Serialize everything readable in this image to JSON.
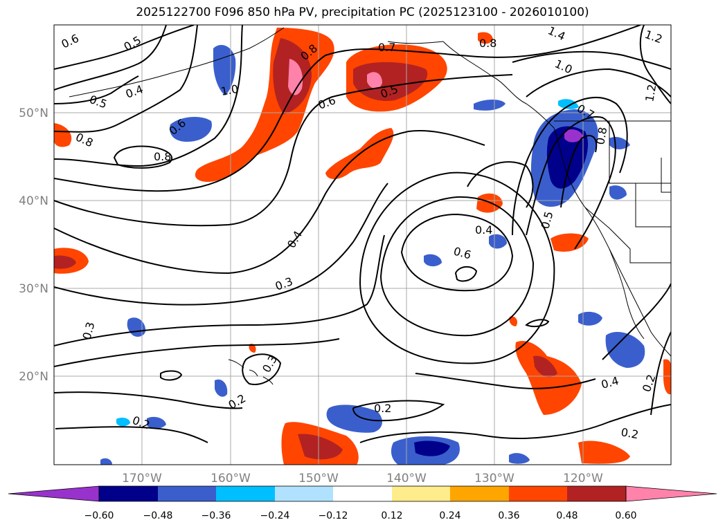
{
  "title": "2025122700 F096 850 hPa PV, precipitation PC (2025123100 - 2026010100)",
  "latitude_labels": [
    "50°N",
    "40°N",
    "30°N",
    "20°N"
  ],
  "longitude_labels": [
    "170°W",
    "160°W",
    "150°W",
    "140°W",
    "130°W",
    "120°W"
  ],
  "colorbar": {
    "tick_labels": [
      "−0.60",
      "−0.48",
      "−0.36",
      "−0.24",
      "−0.12",
      "0.12",
      "0.24",
      "0.36",
      "0.48",
      "0.60"
    ],
    "colors": [
      "#9932cc",
      "#00008b",
      "#3a5fcd",
      "#00bfff",
      "#b0e2ff",
      "#ffffff",
      "#ffec8b",
      "#ffa500",
      "#ff4500",
      "#b22222",
      "#ff82ab"
    ]
  },
  "contour_labels": [
    "0.6",
    "0.5",
    "0.5",
    "0.4",
    "1.0",
    "0.8",
    "0.7",
    "0.5",
    "0.6",
    "0.8",
    "1.4",
    "1.0",
    "1.2",
    "1.2",
    "0.7",
    "0.8",
    "0.6",
    "0.8",
    "0.8",
    "0.4",
    "0.6",
    "0.4",
    "0.3",
    "0.5",
    "0.3",
    "0.3",
    "0.2",
    "0.2",
    "0.2",
    "0.4",
    "0.2",
    "0.2"
  ]
}
